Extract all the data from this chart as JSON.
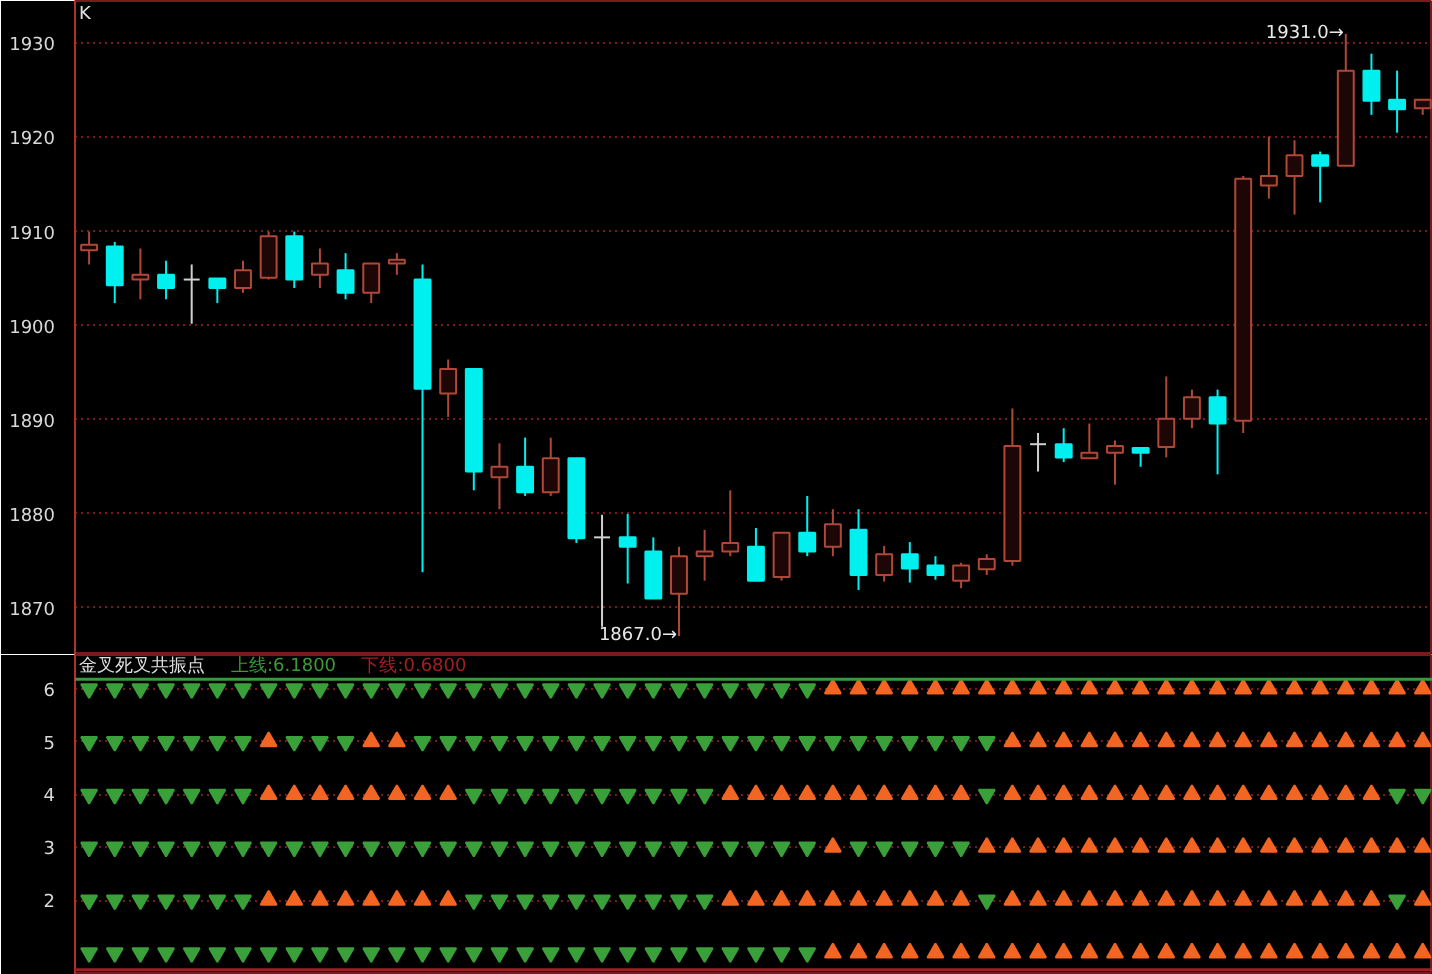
{
  "chart_data": [
    {
      "type": "candlestick",
      "title": "K",
      "categories": [
        null,
        null,
        null,
        null,
        null,
        null,
        null,
        null,
        null,
        null,
        null,
        null,
        null,
        null,
        null,
        null,
        null,
        null,
        null,
        null,
        null,
        null,
        null,
        null,
        null,
        null,
        null,
        null,
        null,
        null,
        null,
        null,
        null,
        null,
        null,
        null,
        null,
        null,
        null,
        null,
        null,
        null,
        null,
        null,
        null,
        null,
        null,
        null,
        null,
        null,
        null,
        null,
        null
      ],
      "ohlc": [
        [
          1908.0,
          1910.0,
          1906.5,
          1908.6
        ],
        [
          1908.4,
          1908.9,
          1902.4,
          1904.3
        ],
        [
          1904.9,
          1908.2,
          1902.8,
          1905.4
        ],
        [
          1905.4,
          1906.9,
          1902.8,
          1904.0
        ],
        [
          1904.9,
          1906.5,
          1900.2,
          1904.9
        ],
        [
          1905.0,
          1905.0,
          1902.4,
          1904.0
        ],
        [
          1904.0,
          1906.9,
          1903.5,
          1905.9
        ],
        [
          1905.1,
          1910.0,
          1904.9,
          1909.5
        ],
        [
          1909.5,
          1910.0,
          1904.0,
          1904.9
        ],
        [
          1905.4,
          1908.2,
          1904.0,
          1906.6
        ],
        [
          1905.9,
          1907.7,
          1902.8,
          1903.5
        ],
        [
          1903.5,
          1906.6,
          1902.4,
          1906.6
        ],
        [
          1906.6,
          1907.7,
          1905.4,
          1907.0
        ],
        [
          1904.9,
          1906.5,
          1873.8,
          1893.3
        ],
        [
          1892.8,
          1896.4,
          1890.3,
          1895.4
        ],
        [
          1895.4,
          1895.4,
          1882.5,
          1884.5
        ],
        [
          1883.9,
          1887.5,
          1880.5,
          1885.0
        ],
        [
          1885.0,
          1888.1,
          1881.9,
          1882.3
        ],
        [
          1882.3,
          1888.1,
          1881.9,
          1885.9
        ],
        [
          1885.9,
          1885.9,
          1876.9,
          1877.4
        ],
        [
          1877.5,
          1879.9,
          1868.0,
          1877.5
        ],
        [
          1877.5,
          1880.0,
          1872.6,
          1876.5
        ],
        [
          1876.0,
          1877.5,
          1871.0,
          1871.0
        ],
        [
          1871.5,
          1876.5,
          1867.0,
          1875.5
        ],
        [
          1875.5,
          1878.3,
          1872.9,
          1876.0
        ],
        [
          1876.0,
          1882.5,
          1875.5,
          1876.9
        ],
        [
          1876.5,
          1878.5,
          1872.9,
          1872.9
        ],
        [
          1873.3,
          1878.0,
          1872.9,
          1878.0
        ],
        [
          1878.0,
          1881.9,
          1875.5,
          1876.0
        ],
        [
          1876.5,
          1880.5,
          1875.5,
          1878.9
        ],
        [
          1878.3,
          1880.5,
          1871.9,
          1873.5
        ],
        [
          1873.5,
          1876.6,
          1872.8,
          1875.7
        ],
        [
          1875.7,
          1877.0,
          1872.7,
          1874.2
        ],
        [
          1874.5,
          1875.5,
          1873.0,
          1873.5
        ],
        [
          1872.9,
          1874.8,
          1872.1,
          1874.5
        ],
        [
          1874.1,
          1875.7,
          1873.5,
          1875.2
        ],
        [
          1875.0,
          1891.2,
          1874.5,
          1887.2
        ],
        [
          1887.4,
          1888.6,
          1884.5,
          1887.4
        ],
        [
          1887.4,
          1889.1,
          1885.5,
          1886.0
        ],
        [
          1885.9,
          1889.6,
          1885.9,
          1886.5
        ],
        [
          1886.5,
          1887.8,
          1883.1,
          1887.2
        ],
        [
          1887.0,
          1887.0,
          1885.0,
          1886.5
        ],
        [
          1887.1,
          1894.6,
          1886.0,
          1890.1
        ],
        [
          1890.1,
          1893.2,
          1889.1,
          1892.4
        ],
        [
          1892.4,
          1893.2,
          1884.2,
          1889.6
        ],
        [
          1889.9,
          1915.9,
          1888.6,
          1915.6
        ],
        [
          1914.9,
          1920.1,
          1913.5,
          1915.9
        ],
        [
          1915.9,
          1919.7,
          1911.8,
          1918.1
        ],
        [
          1918.1,
          1918.5,
          1913.1,
          1917.0
        ],
        [
          1917.0,
          1931.0,
          1917.0,
          1927.1
        ],
        [
          1927.1,
          1928.9,
          1922.4,
          1923.9
        ],
        [
          1924.0,
          1927.1,
          1920.5,
          1923.0
        ],
        [
          1923.1,
          1924.0,
          1922.4,
          1924.0
        ]
      ],
      "ylim": [
        1865,
        1934.5
      ],
      "yticks": [
        1870,
        1880,
        1890,
        1900,
        1910,
        1920,
        1930
      ],
      "grid": "y",
      "tick_labels": "y",
      "annotations": [
        "1931.0→",
        "1867.0→"
      ]
    },
    {
      "type": "scatter",
      "title": "金叉死叉共振点",
      "categories": [
        null,
        null,
        null,
        null,
        null,
        null,
        null,
        null,
        null,
        null,
        null,
        null,
        null,
        null,
        null,
        null,
        null,
        null,
        null,
        null,
        null,
        null,
        null,
        null,
        null,
        null,
        null,
        null,
        null,
        null,
        null,
        null,
        null,
        null,
        null,
        null,
        null,
        null,
        null,
        null,
        null,
        null,
        null,
        null,
        null,
        null,
        null,
        null,
        null,
        null,
        null,
        null,
        null
      ],
      "ylim": [
        0.58,
        6.64
      ],
      "yticks": [
        2,
        3,
        4,
        5,
        6
      ],
      "grid": "y",
      "tick_labels": "y",
      "ref_lines": [
        {
          "axis": "y",
          "value": 6.18,
          "label": "上线:6.1800",
          "color": "#3a9a3a"
        },
        {
          "axis": "y",
          "value": 0.68,
          "label": "下线:0.6800",
          "color": "#a02020"
        }
      ],
      "series": [
        {
          "color": "#f26522",
          "marker": "triangle",
          "values": [
            null,
            null,
            null,
            null,
            null,
            null,
            null,
            null,
            null,
            null,
            null,
            null,
            null,
            null,
            null,
            null,
            null,
            null,
            null,
            null,
            null,
            null,
            null,
            null,
            null,
            null,
            null,
            null,
            null,
            6,
            6,
            6,
            6,
            6,
            6,
            6,
            6,
            6,
            6,
            6,
            6,
            6,
            6,
            6,
            6,
            6,
            6,
            6,
            6,
            6,
            6,
            6,
            6
          ]
        },
        {
          "color": "#3aa03a",
          "values": [
            6,
            6,
            6,
            6,
            6,
            6,
            6,
            6,
            6,
            6,
            6,
            6,
            6,
            6,
            6,
            6,
            6,
            6,
            6,
            6,
            6,
            6,
            6,
            6,
            6,
            6,
            6,
            6,
            6,
            null,
            null,
            null,
            null,
            null,
            null,
            null,
            null,
            null,
            null,
            null,
            null,
            null,
            null,
            null,
            null,
            null,
            null,
            null,
            null,
            null,
            null,
            null,
            null
          ]
        },
        {
          "color": "#f26522",
          "marker": "triangle",
          "values": [
            null,
            null,
            null,
            null,
            null,
            null,
            null,
            5,
            null,
            null,
            null,
            5,
            5,
            null,
            null,
            null,
            null,
            null,
            null,
            null,
            null,
            null,
            null,
            null,
            null,
            null,
            null,
            null,
            null,
            null,
            null,
            null,
            null,
            null,
            null,
            null,
            5,
            5,
            5,
            5,
            5,
            5,
            5,
            5,
            5,
            5,
            5,
            5,
            5,
            5,
            5,
            5,
            5
          ]
        },
        {
          "color": "#3aa03a",
          "values": [
            5,
            5,
            5,
            5,
            5,
            5,
            5,
            null,
            5,
            5,
            5,
            null,
            null,
            5,
            5,
            5,
            5,
            5,
            5,
            5,
            5,
            5,
            5,
            5,
            5,
            5,
            5,
            5,
            5,
            5,
            5,
            5,
            5,
            5,
            5,
            5,
            null,
            null,
            null,
            null,
            null,
            null,
            null,
            null,
            null,
            null,
            null,
            null,
            null,
            null,
            null,
            null,
            null
          ]
        },
        {
          "color": "#f26522",
          "marker": "triangle",
          "values": [
            null,
            null,
            null,
            null,
            null,
            null,
            null,
            4,
            4,
            4,
            4,
            4,
            4,
            4,
            4,
            null,
            null,
            null,
            null,
            null,
            null,
            null,
            null,
            null,
            null,
            4,
            4,
            4,
            4,
            4,
            4,
            4,
            4,
            4,
            4,
            null,
            4,
            4,
            4,
            4,
            4,
            4,
            4,
            4,
            4,
            4,
            4,
            4,
            4,
            4,
            4,
            null,
            null
          ]
        },
        {
          "color": "#3aa03a",
          "values": [
            4,
            4,
            4,
            4,
            4,
            4,
            4,
            null,
            null,
            null,
            null,
            null,
            null,
            null,
            null,
            4,
            4,
            4,
            4,
            4,
            4,
            4,
            4,
            4,
            4,
            null,
            null,
            null,
            null,
            null,
            null,
            null,
            null,
            null,
            null,
            4,
            null,
            null,
            null,
            null,
            null,
            null,
            null,
            null,
            null,
            null,
            null,
            null,
            null,
            null,
            null,
            4,
            4
          ]
        },
        {
          "color": "#f26522",
          "marker": "triangle",
          "values": [
            null,
            null,
            null,
            null,
            null,
            null,
            null,
            null,
            null,
            null,
            null,
            null,
            null,
            null,
            null,
            null,
            null,
            null,
            null,
            null,
            null,
            null,
            null,
            null,
            null,
            null,
            null,
            null,
            null,
            3,
            null,
            null,
            null,
            null,
            null,
            3,
            3,
            3,
            3,
            3,
            3,
            3,
            3,
            3,
            3,
            3,
            3,
            3,
            3,
            3,
            3,
            3,
            3
          ]
        },
        {
          "color": "#3aa03a",
          "values": [
            3,
            3,
            3,
            3,
            3,
            3,
            3,
            3,
            3,
            3,
            3,
            3,
            3,
            3,
            3,
            3,
            3,
            3,
            3,
            3,
            3,
            3,
            3,
            3,
            3,
            3,
            3,
            3,
            3,
            null,
            3,
            3,
            3,
            3,
            3,
            null,
            null,
            null,
            null,
            null,
            null,
            null,
            null,
            null,
            null,
            null,
            null,
            null,
            null,
            null,
            null,
            null,
            null
          ]
        },
        {
          "color": "#f26522",
          "marker": "triangle",
          "values": [
            null,
            null,
            null,
            null,
            null,
            null,
            null,
            2,
            2,
            2,
            2,
            2,
            2,
            2,
            2,
            null,
            null,
            null,
            null,
            null,
            null,
            null,
            null,
            null,
            null,
            2,
            2,
            2,
            2,
            2,
            2,
            2,
            2,
            2,
            2,
            null,
            2,
            2,
            2,
            2,
            2,
            2,
            2,
            2,
            2,
            2,
            2,
            2,
            2,
            2,
            2,
            null,
            2
          ]
        },
        {
          "color": "#3aa03a",
          "values": [
            2,
            2,
            2,
            2,
            2,
            2,
            2,
            null,
            null,
            null,
            null,
            null,
            null,
            null,
            null,
            2,
            2,
            2,
            2,
            2,
            2,
            2,
            2,
            2,
            2,
            null,
            null,
            null,
            null,
            null,
            null,
            null,
            null,
            null,
            null,
            2,
            null,
            null,
            null,
            null,
            null,
            null,
            null,
            null,
            null,
            null,
            null,
            null,
            null,
            null,
            null,
            2,
            null
          ]
        },
        {
          "color": "#f26522",
          "marker": "triangle",
          "values": [
            null,
            null,
            null,
            null,
            null,
            null,
            null,
            null,
            null,
            null,
            null,
            null,
            null,
            null,
            null,
            null,
            null,
            null,
            null,
            null,
            null,
            null,
            null,
            null,
            null,
            null,
            null,
            null,
            null,
            1,
            1,
            1,
            1,
            1,
            1,
            1,
            1,
            1,
            1,
            1,
            1,
            1,
            1,
            1,
            1,
            1,
            1,
            1,
            1,
            1,
            1,
            1,
            1
          ]
        },
        {
          "color": "#3aa03a",
          "values": [
            1,
            1,
            1,
            1,
            1,
            1,
            1,
            1,
            1,
            1,
            1,
            1,
            1,
            1,
            1,
            1,
            1,
            1,
            1,
            1,
            1,
            1,
            1,
            1,
            1,
            1,
            1,
            1,
            1,
            null,
            null,
            null,
            null,
            null,
            null,
            null,
            null,
            null,
            null,
            null,
            null,
            null,
            null,
            null,
            null,
            null,
            null,
            null,
            null,
            null,
            null,
            null,
            null
          ]
        }
      ]
    }
  ]
}
